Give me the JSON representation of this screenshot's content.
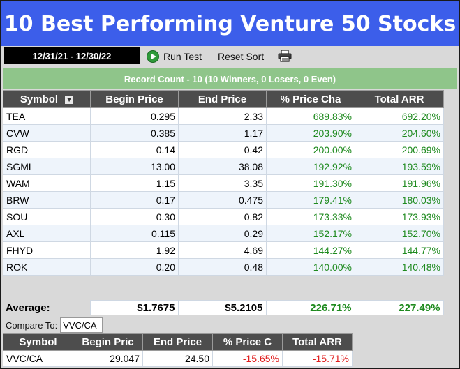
{
  "title": "10 Best Performing Venture 50 Stocks",
  "toolbar": {
    "date_range": "12/31/21 - 12/30/22",
    "run_test": "Run Test",
    "reset_sort": "Reset Sort",
    "print_icon": "printer-icon"
  },
  "record_count": "Record Count - 10 (10 Winners, 0 Losers, 0 Even)",
  "columns": [
    "Symbol",
    "Begin Price",
    "End Price",
    "% Price Cha",
    "Total ARR"
  ],
  "rows": [
    {
      "symbol": "TEA",
      "begin": "0.295",
      "end": "2.33",
      "pct": "689.83%",
      "arr": "692.20%"
    },
    {
      "symbol": "CVW",
      "begin": "0.385",
      "end": "1.17",
      "pct": "203.90%",
      "arr": "204.60%"
    },
    {
      "symbol": "RGD",
      "begin": "0.14",
      "end": "0.42",
      "pct": "200.00%",
      "arr": "200.69%"
    },
    {
      "symbol": "SGML",
      "begin": "13.00",
      "end": "38.08",
      "pct": "192.92%",
      "arr": "193.59%"
    },
    {
      "symbol": "WAM",
      "begin": "1.15",
      "end": "3.35",
      "pct": "191.30%",
      "arr": "191.96%"
    },
    {
      "symbol": "BRW",
      "begin": "0.17",
      "end": "0.475",
      "pct": "179.41%",
      "arr": "180.03%"
    },
    {
      "symbol": "SOU",
      "begin": "0.30",
      "end": "0.82",
      "pct": "173.33%",
      "arr": "173.93%"
    },
    {
      "symbol": "AXL",
      "begin": "0.115",
      "end": "0.29",
      "pct": "152.17%",
      "arr": "152.70%"
    },
    {
      "symbol": "FHYD",
      "begin": "1.92",
      "end": "4.69",
      "pct": "144.27%",
      "arr": "144.77%"
    },
    {
      "symbol": "ROK",
      "begin": "0.20",
      "end": "0.48",
      "pct": "140.00%",
      "arr": "140.48%"
    }
  ],
  "average": {
    "label": "Average:",
    "begin": "$1.7675",
    "end": "$5.2105",
    "pct": "226.71%",
    "arr": "227.49%"
  },
  "compare": {
    "label": "Compare To:",
    "value": "VVC/CA",
    "columns": [
      "Symbol",
      "Begin Pric",
      "End Price",
      "% Price C",
      "Total ARR"
    ],
    "row": {
      "symbol": "VVC/CA",
      "begin": "29.047",
      "end": "24.50",
      "pct": "-15.65%",
      "arr": "-15.71%"
    }
  },
  "colors": {
    "title_bg": "#3c5eea",
    "header_bg": "#4d4d4d",
    "record_bg": "#8fc58a",
    "positive": "#1e8a1e",
    "negative": "#e01b1b"
  }
}
